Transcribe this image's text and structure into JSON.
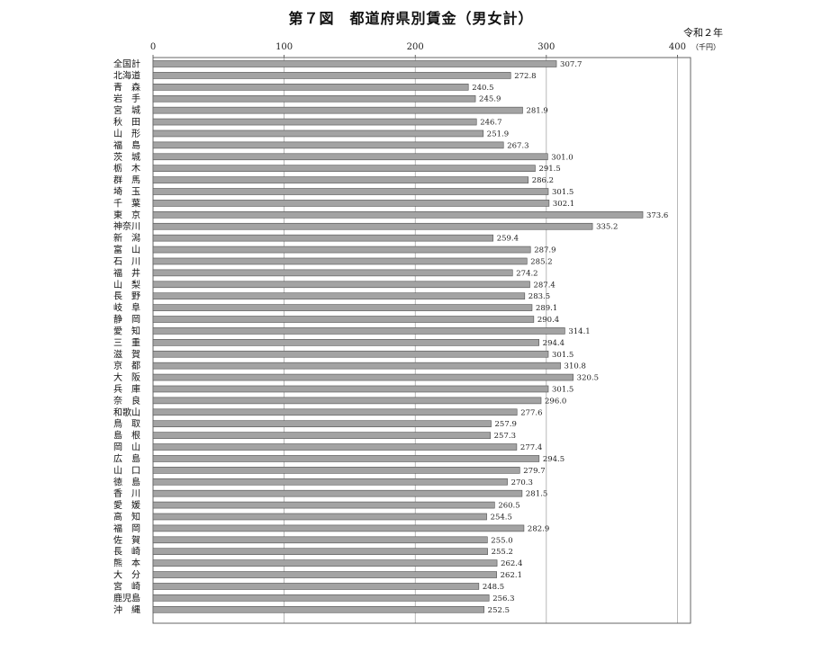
{
  "page": {
    "title": "第７図　都道府県別賃金（男女計）",
    "era": "令和２年",
    "unit": "（千円）"
  },
  "chart_data": {
    "type": "bar",
    "orientation": "horizontal",
    "title": "第７図　都道府県別賃金（男女計）",
    "subtitle": "令和２年",
    "unit": "（千円）",
    "xlim": [
      0,
      410
    ],
    "xticks": [
      0,
      100,
      200,
      300,
      400
    ],
    "grid": true,
    "colors": {
      "bar_fill": "#a3a3a3",
      "bar_stroke": "#505050",
      "grid": "#9a9a9a"
    },
    "categories": [
      "全国計",
      "北海道",
      "青　森",
      "岩　手",
      "宮　城",
      "秋　田",
      "山　形",
      "福　島",
      "茨　城",
      "栃　木",
      "群　馬",
      "埼　玉",
      "千　葉",
      "東　京",
      "神奈川",
      "新　潟",
      "富　山",
      "石　川",
      "福　井",
      "山　梨",
      "長　野",
      "岐　阜",
      "静　岡",
      "愛　知",
      "三　重",
      "滋　賀",
      "京　都",
      "大　阪",
      "兵　庫",
      "奈　良",
      "和歌山",
      "鳥　取",
      "島　根",
      "岡　山",
      "広　島",
      "山　口",
      "徳　島",
      "香　川",
      "愛　媛",
      "高　知",
      "福　岡",
      "佐　賀",
      "長　崎",
      "熊　本",
      "大　分",
      "宮　崎",
      "鹿児島",
      "沖　縄"
    ],
    "values": [
      307.7,
      272.8,
      240.5,
      245.9,
      281.9,
      246.7,
      251.9,
      267.3,
      301.0,
      291.5,
      286.2,
      301.5,
      302.1,
      373.6,
      335.2,
      259.4,
      287.9,
      285.2,
      274.2,
      287.4,
      283.5,
      289.1,
      290.4,
      314.1,
      294.4,
      301.5,
      310.8,
      320.5,
      301.5,
      296.0,
      277.6,
      257.9,
      257.3,
      277.4,
      294.5,
      279.7,
      270.3,
      281.5,
      260.5,
      254.5,
      282.9,
      255.0,
      255.2,
      262.4,
      262.1,
      248.5,
      256.3,
      252.5
    ],
    "value_labels": [
      "307.7",
      "272.8",
      "240.5",
      "245.9",
      "281.9",
      "246.7",
      "251.9",
      "267.3",
      "301.0",
      "291.5",
      "286.2",
      "301.5",
      "302.1",
      "373.6",
      "335.2",
      "259.4",
      "287.9",
      "285.2",
      "274.2",
      "287.4",
      "283.5",
      "289.1",
      "290.4",
      "314.1",
      "294.4",
      "301.5",
      "310.8",
      "320.5",
      "301.5",
      "296.0",
      "277.6",
      "257.9",
      "257.3",
      "277.4",
      "294.5",
      "279.7",
      "270.3",
      "281.5",
      "260.5",
      "254.5",
      "282.9",
      "255.0",
      "255.2",
      "262.4",
      "262.1",
      "248.5",
      "256.3",
      "252.5"
    ]
  }
}
